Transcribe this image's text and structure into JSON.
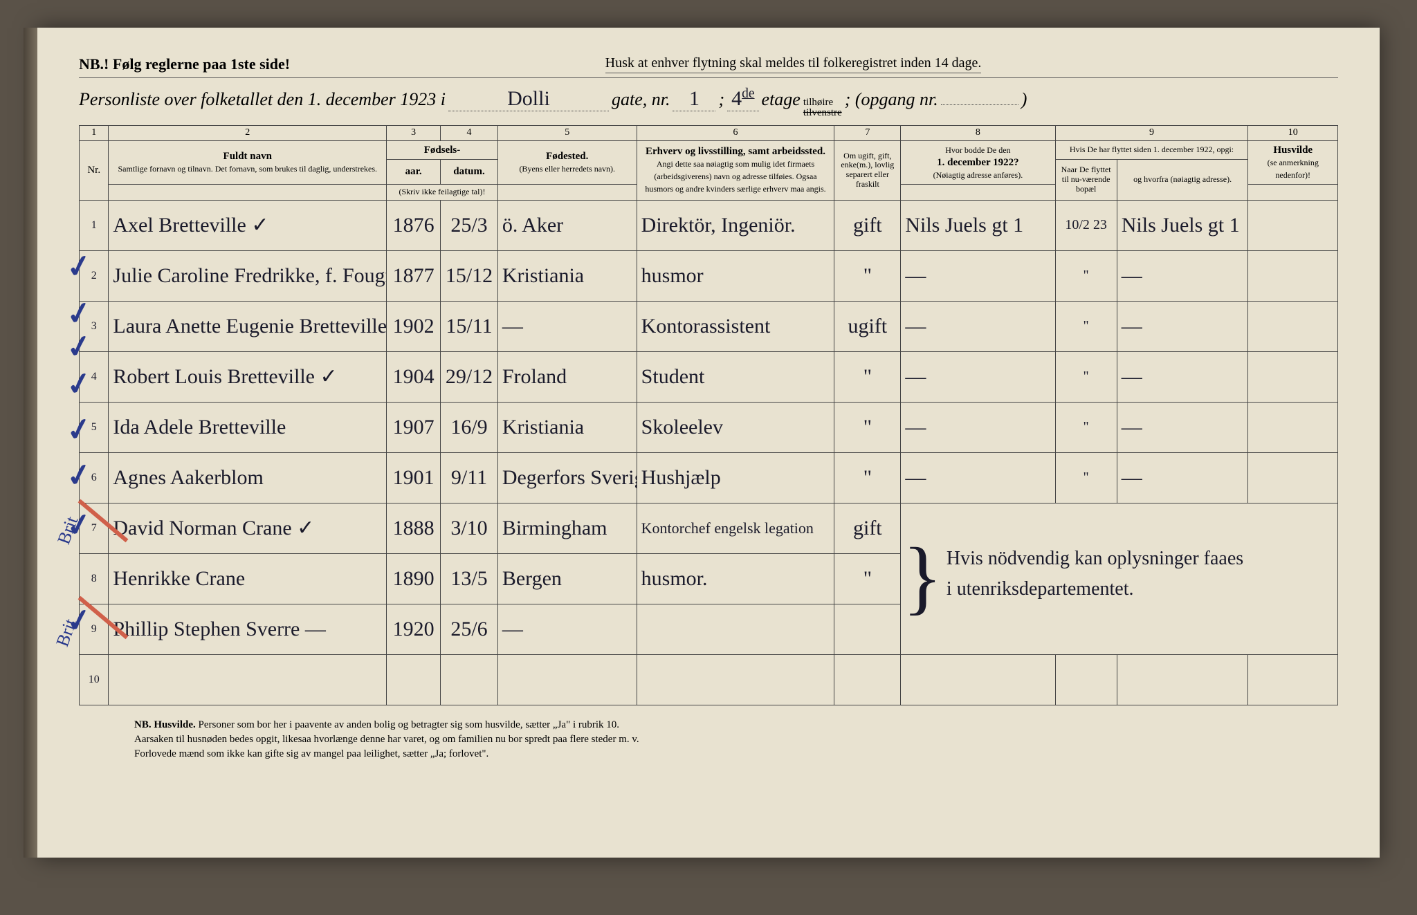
{
  "header": {
    "nb": "NB.! Følg reglerne paa 1ste side!",
    "husk": "Husk at enhver flytning skal meldes til folkeregistret inden 14 dage.",
    "title_prefix": "Personliste over folketallet den 1. december 1923 i",
    "street": "Dolli",
    "gate_label": "gate, nr.",
    "gate_nr": "1",
    "separator": ";",
    "etage_nr": "4",
    "etage_sup": "de",
    "etage_label": "etage",
    "tilhoire": "tilhøire",
    "tilvenstre": "tilvenstre",
    "opgang_label": "; (opgang nr.",
    "opgang_val": "",
    "opgang_close": ")"
  },
  "columns": {
    "c1": "1",
    "c2": "2",
    "c3": "3",
    "c4": "4",
    "c5": "5",
    "c6": "6",
    "c7": "7",
    "c8": "8",
    "c9": "9",
    "c10": "10",
    "nr": "Nr.",
    "fuldt_navn": "Fuldt navn",
    "fuldt_navn_sub": "Samtlige fornavn og tilnavn.  Det fornavn, som brukes til daglig, understrekes.",
    "fodsels": "Fødsels-",
    "aar": "aar.",
    "datum": "datum.",
    "aar_sub": "(Skriv ikke feilagtige tal)!",
    "fodested": "Fødested.",
    "fodested_sub": "(Byens eller herredets navn).",
    "erhverv": "Erhverv og livsstilling, samt arbeidssted.",
    "erhverv_sub": "Angi dette saa nøiagtig som mulig idet firmaets (arbeidsgiverens) navn og adresse tilføies. Ogsaa husmors og andre kvinders særlige erhverv maa angis.",
    "om_ugift": "Om ugift, gift, enke(m.), lovlig separert eller fraskilt",
    "hvor_1922": "Hvor bodde De den 1. december 1922?",
    "hvor_1922_sub": "(Nøiagtig adresse anføres).",
    "hvis_flyttet": "Hvis De har flyttet siden 1. december 1922, opgi:",
    "naar": "Naar De flyttet til nu-værende bopæl",
    "hvorfra": "og hvorfra (nøiagtig adresse).",
    "husvilde": "Husvilde",
    "husvilde_sub": "(se anmerkning nedenfor)!"
  },
  "rows": [
    {
      "nr": "1",
      "name": "Axel Bretteville ✓",
      "year": "1876",
      "date": "25/3",
      "place": "ö. Aker",
      "occ": "Direktör, Ingeniör.",
      "stat": "gift",
      "addr22": "Nils Juels gt 1",
      "when": "10/2 23",
      "from": "Nils Juels gt 1",
      "husv": ""
    },
    {
      "nr": "2",
      "name": "Julie Caroline Fredrikke, f. Fougner",
      "year": "1877",
      "date": "15/12",
      "place": "Kristiania",
      "occ": "husmor",
      "stat": "\"",
      "addr22": "—",
      "when": "\"",
      "from": "—",
      "husv": ""
    },
    {
      "nr": "3",
      "name": "Laura Anette Eugenie Bretteville",
      "year": "1902",
      "date": "15/11",
      "place": "—",
      "occ": "Kontorassistent",
      "stat": "ugift",
      "addr22": "—",
      "when": "\"",
      "from": "—",
      "husv": ""
    },
    {
      "nr": "4",
      "name": "Robert Louis Bretteville ✓",
      "year": "1904",
      "date": "29/12",
      "place": "Froland",
      "occ": "Student",
      "stat": "\"",
      "addr22": "—",
      "when": "\"",
      "from": "—",
      "husv": ""
    },
    {
      "nr": "5",
      "name": "Ida Adele Bretteville",
      "year": "1907",
      "date": "16/9",
      "place": "Kristiania",
      "occ": "Skoleelev",
      "stat": "\"",
      "addr22": "—",
      "when": "\"",
      "from": "—",
      "husv": ""
    },
    {
      "nr": "6",
      "name": "Agnes Aakerblom",
      "year": "1901",
      "date": "9/11",
      "place": "Degerfors Sverige",
      "occ": "Hushjælp",
      "stat": "\"",
      "addr22": "—",
      "when": "\"",
      "from": "—",
      "husv": ""
    },
    {
      "nr": "7",
      "name": "David Norman Crane ✓",
      "year": "1888",
      "date": "3/10",
      "place": "Birmingham",
      "occ": "Kontorchef engelsk legation",
      "stat": "gift",
      "addr22": "}",
      "when": "",
      "from": "",
      "husv": ""
    },
    {
      "nr": "8",
      "name": "Henrikke Crane",
      "year": "1890",
      "date": "13/5",
      "place": "Bergen",
      "occ": "husmor.",
      "stat": "\"",
      "addr22": "} Hvis nödvendig kan oplysninger faaes",
      "when": "",
      "from": "",
      "husv": ""
    },
    {
      "nr": "9",
      "name": "Phillip Stephen Sverre —",
      "year": "1920",
      "date": "25/6",
      "place": "—",
      "occ": "",
      "stat": "",
      "addr22": "} i utenriksdepartementet.",
      "when": "",
      "from": "",
      "husv": ""
    },
    {
      "nr": "10",
      "name": "",
      "year": "",
      "date": "",
      "place": "",
      "occ": "",
      "stat": "",
      "addr22": "",
      "when": "",
      "from": "",
      "husv": ""
    }
  ],
  "footer": {
    "line1a": "NB.  Husvilde.",
    "line1b": "Personer som bor her i paavente av anden bolig og betragter sig som husvilde, sætter „Ja\" i rubrik 10.",
    "line2": "Aarsaken til husnøden bedes opgit, likesaa hvorlænge denne har varet, og om familien nu bor spredt paa flere steder m. v.",
    "line3a": "Forlovede mænd som ikke kan gifte sig av mangel paa leilighet, sætter „Ja; forlovet\"."
  },
  "annotations": {
    "checks": [
      320,
      388,
      436,
      490,
      556,
      622,
      694,
      832
    ],
    "brit1": "Brit",
    "brit2": "Brit"
  }
}
